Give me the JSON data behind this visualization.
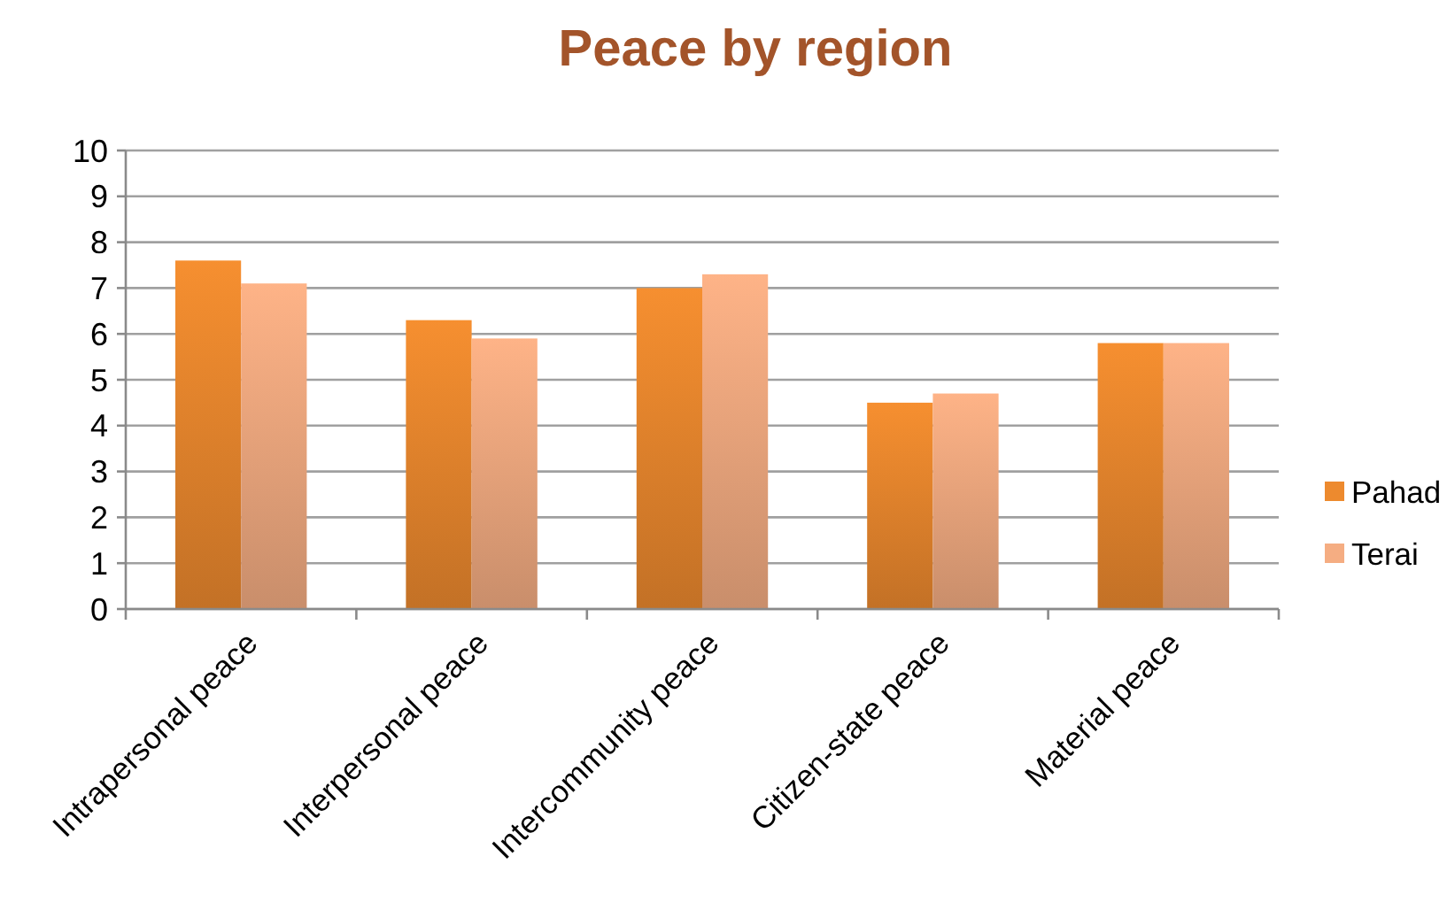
{
  "chart_data": {
    "type": "bar",
    "title": "Peace by region",
    "categories": [
      "Intrapersonal peace",
      "Interpersonal peace",
      "Intercommunity peace",
      "Citizen-state peace",
      "Material peace"
    ],
    "series": [
      {
        "name": "Pahad",
        "color": "#ed8a2e",
        "values": [
          7.6,
          6.3,
          7.0,
          4.5,
          5.8
        ]
      },
      {
        "name": "Terai",
        "color": "#f5ad82",
        "values": [
          7.1,
          5.9,
          7.3,
          4.7,
          5.8
        ]
      }
    ],
    "ylim": [
      0,
      10
    ],
    "yticks": [
      0,
      1,
      2,
      3,
      4,
      5,
      6,
      7,
      8,
      9,
      10
    ],
    "grid": "y",
    "legend": "right"
  }
}
